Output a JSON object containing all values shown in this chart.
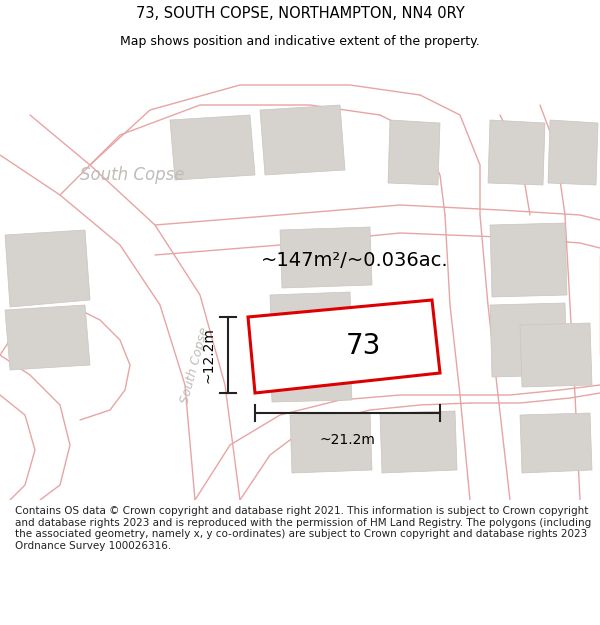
{
  "title_line1": "73, SOUTH COPSE, NORTHAMPTON, NN4 0RY",
  "title_line2": "Map shows position and indicative extent of the property.",
  "disclaimer": "Contains OS data © Crown copyright and database right 2021. This information is subject to Crown copyright and database rights 2023 and is reproduced with the permission of HM Land Registry. The polygons (including the associated geometry, namely x, y co-ordinates) are subject to Crown copyright and database rights 2023 Ordnance Survey 100026316.",
  "property_number": "73",
  "area_text": "~147m²/~0.036ac.",
  "dim_horiz": "~21.2m",
  "dim_vert": "~12.2m",
  "road_label_diag": "South Copse",
  "road_label_top": "South Copse",
  "map_bg": "#f2f0ee",
  "road_color": "#e8a4a4",
  "building_color": "#d6d3ce",
  "building_edge": "#c8c5c0",
  "property_fill": "#ffffff",
  "property_color": "#dd0000",
  "dim_color": "#222222",
  "title_color": "#000000",
  "disclaimer_color": "#222222",
  "title_fontsize": 10.5,
  "subtitle_fontsize": 9,
  "disclaimer_fontsize": 7.5
}
